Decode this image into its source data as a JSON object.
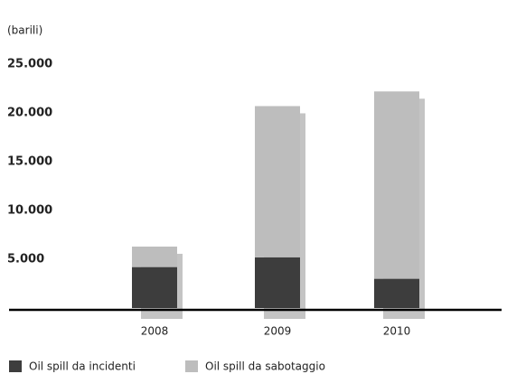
{
  "chart_data": {
    "type": "bar",
    "stacked": true,
    "unit_label": "(barili)",
    "categories": [
      "2008",
      "2009",
      "2010"
    ],
    "series": [
      {
        "name": "Oil spill da incidenti",
        "color": "#3d3d3d",
        "values": [
          4200,
          5200,
          3000
        ]
      },
      {
        "name": "Oil spill da sabotaggio",
        "color": "#bdbdbd",
        "values": [
          2100,
          15500,
          19200
        ]
      }
    ],
    "ylim": [
      0,
      25000
    ],
    "yticks": [
      {
        "value": 5000,
        "label": "5.000"
      },
      {
        "value": 10000,
        "label": "10.000"
      },
      {
        "value": 15000,
        "label": "15.000"
      },
      {
        "value": 20000,
        "label": "20.000"
      },
      {
        "value": 25000,
        "label": "25.000"
      }
    ],
    "grid": false
  }
}
